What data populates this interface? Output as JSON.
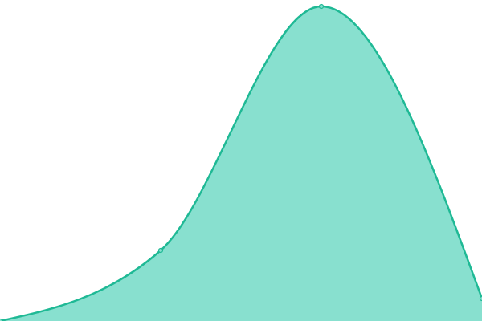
{
  "chart_data": {
    "type": "area",
    "categories": [
      null,
      null,
      null,
      null
    ],
    "values": [
      0,
      22,
      98,
      7
    ],
    "ylim": [
      0,
      100
    ],
    "color": "#1fb995",
    "fill": "#88e0cf"
  }
}
